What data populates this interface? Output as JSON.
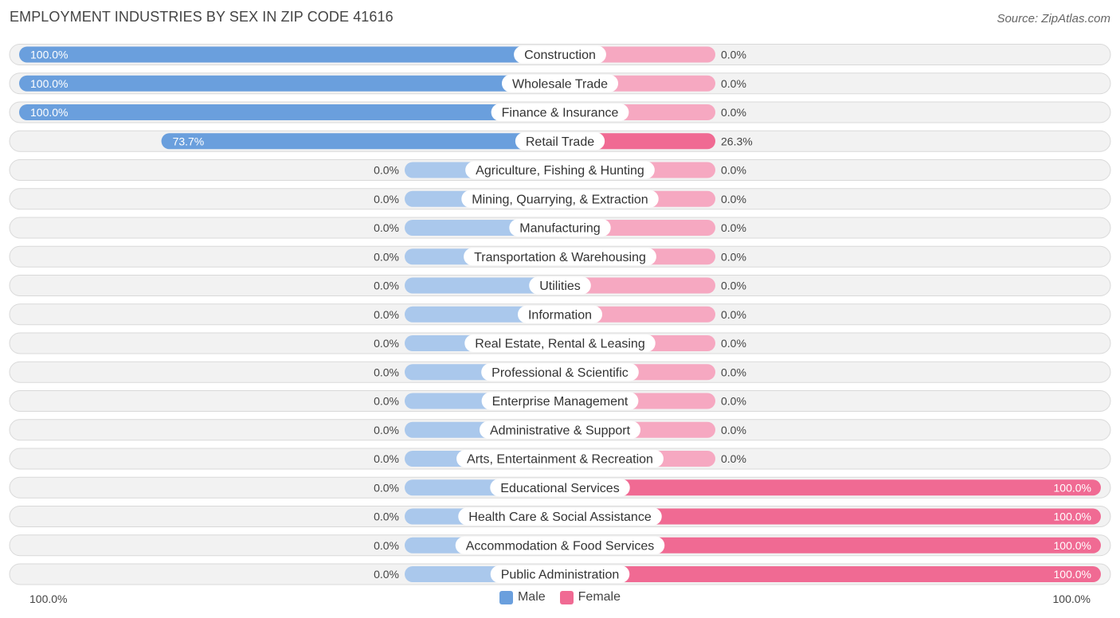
{
  "title": "EMPLOYMENT INDUSTRIES BY SEX IN ZIP CODE 41616",
  "source": "Source: ZipAtlas.com",
  "colors": {
    "male": "#6a9fdd",
    "male_light": "#aac8ec",
    "female": "#f06a93",
    "female_light": "#f6a8c1",
    "row_bg": "#f2f2f2",
    "row_border": "#d9d9d9"
  },
  "chart_data": {
    "type": "bar",
    "orientation": "horizontal-diverging",
    "title": "EMPLOYMENT INDUSTRIES BY SEX IN ZIP CODE 41616",
    "categories": [
      "Construction",
      "Wholesale Trade",
      "Finance & Insurance",
      "Retail Trade",
      "Agriculture, Fishing & Hunting",
      "Mining, Quarrying, & Extraction",
      "Manufacturing",
      "Transportation & Warehousing",
      "Utilities",
      "Information",
      "Real Estate, Rental & Leasing",
      "Professional & Scientific",
      "Enterprise Management",
      "Administrative & Support",
      "Arts, Entertainment & Recreation",
      "Educational Services",
      "Health Care & Social Assistance",
      "Accommodation & Food Services",
      "Public Administration"
    ],
    "series": [
      {
        "name": "Male",
        "values": [
          100.0,
          100.0,
          100.0,
          73.7,
          0,
          0,
          0,
          0,
          0,
          0,
          0,
          0,
          0,
          0,
          0,
          0,
          0,
          0,
          0
        ],
        "labels": [
          "100.0%",
          "100.0%",
          "100.0%",
          "73.7%",
          "0.0%",
          "0.0%",
          "0.0%",
          "0.0%",
          "0.0%",
          "0.0%",
          "0.0%",
          "0.0%",
          "0.0%",
          "0.0%",
          "0.0%",
          "0.0%",
          "0.0%",
          "0.0%",
          "0.0%"
        ]
      },
      {
        "name": "Female",
        "values": [
          0,
          0,
          0,
          26.3,
          0,
          0,
          0,
          0,
          0,
          0,
          0,
          0,
          0,
          0,
          0,
          100.0,
          100.0,
          100.0,
          100.0
        ],
        "labels": [
          "0.0%",
          "0.0%",
          "0.0%",
          "26.3%",
          "0.0%",
          "0.0%",
          "0.0%",
          "0.0%",
          "0.0%",
          "0.0%",
          "0.0%",
          "0.0%",
          "0.0%",
          "0.0%",
          "0.0%",
          "100.0%",
          "100.0%",
          "100.0%",
          "100.0%"
        ]
      }
    ],
    "xlim": [
      -100,
      100
    ],
    "axis_labels": {
      "left": "100.0%",
      "right": "100.0%"
    },
    "legend": [
      "Male",
      "Female"
    ],
    "legend_position": "bottom-center"
  }
}
